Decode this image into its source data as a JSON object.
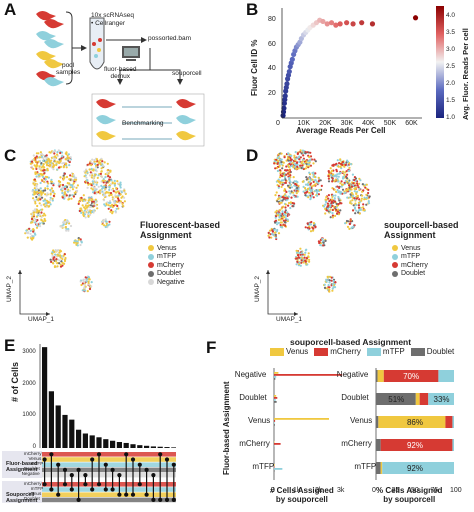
{
  "panels": {
    "a": {
      "letter": "A",
      "input_label": "10x scRNAseq",
      "cellranger_label": "• Cellranger",
      "output_label": "possorted.bam",
      "pool_label": "pool\nsamples",
      "left_method": "fluor-based\ndemux",
      "right_method": "souporcell",
      "bench_label": "Benchmarking"
    },
    "b": {
      "letter": "B",
      "ylabel": "Fluor Cell ID %",
      "xlabel": "Average Reads Per Cell",
      "colorbar_label": "Avg. Fluor. Reads Per cell",
      "xticks": [
        "0",
        "10K",
        "20K",
        "30K",
        "40K",
        "50K",
        "60K"
      ],
      "yticks": [
        "20",
        "40",
        "60",
        "80"
      ],
      "cticks": [
        "1.0",
        "1.5",
        "2.0",
        "2.5",
        "3.0",
        "3.5",
        "4.0"
      ]
    },
    "c": {
      "letter": "C",
      "legend_title": "Fluorescent-based\nAssignment",
      "legend": [
        "Venus",
        "mTFP",
        "mCherry",
        "Doublet",
        "Negative"
      ],
      "axis_y": "UMAP_2",
      "axis_x": "UMAP_1"
    },
    "d": {
      "letter": "D",
      "legend_title": "souporcell-based\nAssignment",
      "legend": [
        "Venus",
        "mTFP",
        "mCherry",
        "Doublet"
      ],
      "axis_y": "UMAP_2",
      "axis_x": "UMAP_1"
    },
    "e": {
      "letter": "E",
      "ylabel": "# of Cells",
      "yticks": [
        "0",
        "1000",
        "2000",
        "3000"
      ],
      "group1": "Fluor-based\nAssignment",
      "group2": "Souporcell\nAssignment",
      "rows1": [
        "mCherry",
        "Venus",
        "mTFP",
        "Doublet",
        "Negative"
      ],
      "rows2": [
        "mCherry",
        "mTFP",
        "Venus",
        "Doublet"
      ]
    },
    "f": {
      "letter": "F",
      "title": "souporcell-based Assignment",
      "legend": [
        "Venus",
        "mCherry",
        "mTFP",
        "Doublet"
      ],
      "ylabel": "Fluor-based Assignment",
      "left_xlabel": "# Cells Assigned\nby souporcell",
      "right_xlabel": "% Cells Assigned\nby souporcell",
      "left_xticks": [
        "0",
        "1k",
        "2k",
        "3k"
      ],
      "right_xticks": [
        "0",
        "25",
        "50",
        "75",
        "100"
      ]
    }
  },
  "colors": {
    "venus": "#f0c840",
    "mcherry": "#d63a33",
    "mtfp": "#8fd0dc",
    "doublet": "#6e6e6e",
    "negative": "#d8d8d8"
  },
  "chart_data": [
    {
      "type": "scatter",
      "panel": "B",
      "xlabel": "Average Reads Per Cell",
      "ylabel": "Fluor Cell ID %",
      "xlim": [
        0,
        65000
      ],
      "ylim": [
        0,
        90
      ],
      "colorbar": {
        "label": "Avg. Fluor. Reads Per cell",
        "range": [
          1.0,
          4.3
        ]
      },
      "points": [
        {
          "x": 500,
          "y": 2,
          "c": 1.0
        },
        {
          "x": 700,
          "y": 5,
          "c": 1.05
        },
        {
          "x": 900,
          "y": 8,
          "c": 1.1
        },
        {
          "x": 1100,
          "y": 12,
          "c": 1.15
        },
        {
          "x": 1300,
          "y": 15,
          "c": 1.2
        },
        {
          "x": 1500,
          "y": 18,
          "c": 1.25
        },
        {
          "x": 1700,
          "y": 22,
          "c": 1.3
        },
        {
          "x": 2000,
          "y": 25,
          "c": 1.35
        },
        {
          "x": 2300,
          "y": 28,
          "c": 1.4
        },
        {
          "x": 2600,
          "y": 32,
          "c": 1.45
        },
        {
          "x": 3000,
          "y": 35,
          "c": 1.5
        },
        {
          "x": 3400,
          "y": 38,
          "c": 1.6
        },
        {
          "x": 3800,
          "y": 42,
          "c": 1.65
        },
        {
          "x": 4300,
          "y": 45,
          "c": 1.7
        },
        {
          "x": 4800,
          "y": 48,
          "c": 1.8
        },
        {
          "x": 5400,
          "y": 52,
          "c": 1.85
        },
        {
          "x": 6000,
          "y": 55,
          "c": 1.9
        },
        {
          "x": 6700,
          "y": 58,
          "c": 2.0
        },
        {
          "x": 7500,
          "y": 60,
          "c": 2.1
        },
        {
          "x": 8300,
          "y": 62,
          "c": 2.2
        },
        {
          "x": 9000,
          "y": 65,
          "c": 2.3
        },
        {
          "x": 10000,
          "y": 68,
          "c": 2.4
        },
        {
          "x": 11000,
          "y": 70,
          "c": 2.5
        },
        {
          "x": 12000,
          "y": 72,
          "c": 2.6
        },
        {
          "x": 13000,
          "y": 74,
          "c": 2.7
        },
        {
          "x": 14500,
          "y": 76,
          "c": 2.8
        },
        {
          "x": 16000,
          "y": 78,
          "c": 2.9
        },
        {
          "x": 17500,
          "y": 80,
          "c": 3.0
        },
        {
          "x": 19000,
          "y": 79,
          "c": 3.1
        },
        {
          "x": 21000,
          "y": 77,
          "c": 3.2
        },
        {
          "x": 23000,
          "y": 78,
          "c": 3.3
        },
        {
          "x": 25000,
          "y": 76,
          "c": 3.4
        },
        {
          "x": 27000,
          "y": 77,
          "c": 3.5
        },
        {
          "x": 30000,
          "y": 78,
          "c": 3.6
        },
        {
          "x": 33000,
          "y": 77,
          "c": 3.7
        },
        {
          "x": 37000,
          "y": 78,
          "c": 3.8
        },
        {
          "x": 42000,
          "y": 77,
          "c": 3.9
        },
        {
          "x": 62000,
          "y": 82,
          "c": 4.3
        }
      ]
    },
    {
      "type": "bar",
      "panel": "E",
      "ylabel": "# of Cells",
      "ylim": [
        0,
        3300
      ],
      "values": [
        3200,
        1800,
        1350,
        1050,
        900,
        580,
        460,
        400,
        340,
        280,
        230,
        190,
        160,
        120,
        90,
        70,
        50,
        40,
        30,
        20,
        15,
        10
      ]
    },
    {
      "type": "bar",
      "panel": "F-left",
      "categories": [
        "Negative",
        "Doublet",
        "Venus",
        "mCherry",
        "mTFP"
      ],
      "xlabel": "# Cells Assigned by souporcell",
      "xlim": [
        0,
        3000
      ],
      "series": [
        {
          "name": "Venus",
          "values": [
            200,
            100,
            2500,
            20,
            30
          ]
        },
        {
          "name": "mCherry",
          "values": [
            3100,
            150,
            50,
            300,
            20
          ]
        },
        {
          "name": "mTFP",
          "values": [
            100,
            80,
            30,
            10,
            380
          ]
        },
        {
          "name": "Doublet",
          "values": [
            60,
            120,
            40,
            20,
            30
          ]
        }
      ]
    },
    {
      "type": "bar",
      "panel": "F-right",
      "categories": [
        "Negative",
        "Doublet",
        "Venus",
        "mCherry",
        "mTFP"
      ],
      "xlabel": "% Cells Assigned by souporcell",
      "xlim": [
        0,
        100
      ],
      "series": [
        {
          "name": "Doublet",
          "values": [
            2,
            51,
            3,
            6,
            6
          ]
        },
        {
          "name": "Venus",
          "values": [
            8,
            5,
            86,
            0,
            2
          ]
        },
        {
          "name": "mCherry",
          "values": [
            70,
            11,
            9,
            92,
            0
          ]
        },
        {
          "name": "mTFP",
          "values": [
            20,
            33,
            2,
            2,
            92
          ]
        }
      ],
      "labels": [
        {
          "row": "Negative",
          "text": "70%"
        },
        {
          "row": "Doublet",
          "text": "51%"
        },
        {
          "row": "Doublet",
          "text": "33%"
        },
        {
          "row": "Venus",
          "text": "86%"
        },
        {
          "row": "mCherry",
          "text": "92%"
        },
        {
          "row": "mTFP",
          "text": "92%"
        }
      ]
    }
  ]
}
